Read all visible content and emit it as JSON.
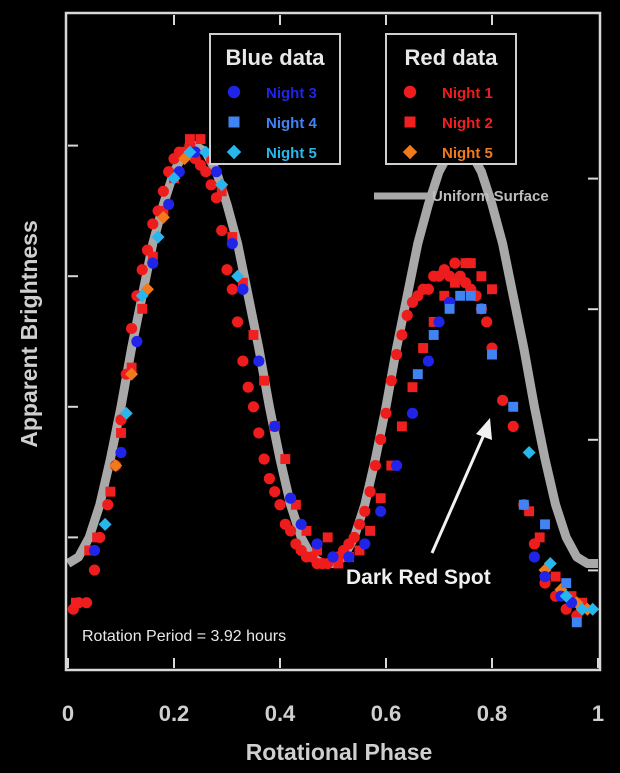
{
  "chart_data": {
    "type": "scatter",
    "title": "",
    "xlabel": "Rotational Phase",
    "ylabel": "Apparent Brightness",
    "xlim": [
      0,
      1
    ],
    "ylim": [
      0,
      1
    ],
    "x_ticks": [
      "0",
      "0.2",
      "0.4",
      "0.6",
      "0.8",
      "1"
    ],
    "grid": false,
    "annotations": {
      "rotation_period": "Rotation Period = 3.92 hours",
      "spot_label": "Dark Red Spot",
      "model_label": "Uniform Surface"
    },
    "legend_groups": [
      {
        "title": "Blue data",
        "placement": "top-left",
        "entries": [
          {
            "name": "Night 3",
            "marker": "circle",
            "color": "#1f24e8"
          },
          {
            "name": "Night 4",
            "marker": "square",
            "color": "#3f84f2"
          },
          {
            "name": "Night 5",
            "marker": "diamond",
            "color": "#27b6ee"
          }
        ]
      },
      {
        "title": "Red data",
        "placement": "top-center",
        "entries": [
          {
            "name": "Night 1",
            "marker": "circle",
            "color": "#ee1c1c"
          },
          {
            "name": "Night 2",
            "marker": "square",
            "color": "#f02020"
          },
          {
            "name": "Night 5",
            "marker": "diamond",
            "color": "#f07a1c"
          }
        ]
      }
    ],
    "model_curve": {
      "name": "Uniform Surface",
      "color": "#a8a8a8",
      "x": [
        0,
        0.02,
        0.04,
        0.06,
        0.08,
        0.1,
        0.12,
        0.14,
        0.16,
        0.18,
        0.2,
        0.22,
        0.24,
        0.26,
        0.28,
        0.3,
        0.32,
        0.34,
        0.36,
        0.38,
        0.4,
        0.42,
        0.44,
        0.46,
        0.48,
        0.5,
        0.52,
        0.54,
        0.56,
        0.58,
        0.6,
        0.62,
        0.64,
        0.66,
        0.68,
        0.7,
        0.72,
        0.74,
        0.76,
        0.78,
        0.8,
        0.82,
        0.84,
        0.86,
        0.88,
        0.9,
        0.92,
        0.94,
        0.96,
        0.98,
        1.0
      ],
      "y": [
        0.16,
        0.17,
        0.2,
        0.25,
        0.32,
        0.4,
        0.49,
        0.57,
        0.65,
        0.71,
        0.76,
        0.79,
        0.8,
        0.79,
        0.76,
        0.71,
        0.65,
        0.57,
        0.49,
        0.4,
        0.32,
        0.25,
        0.2,
        0.17,
        0.16,
        0.16,
        0.17,
        0.2,
        0.25,
        0.32,
        0.4,
        0.49,
        0.57,
        0.65,
        0.71,
        0.76,
        0.79,
        0.8,
        0.79,
        0.76,
        0.71,
        0.65,
        0.57,
        0.49,
        0.4,
        0.32,
        0.25,
        0.2,
        0.17,
        0.16,
        0.16
      ]
    },
    "series": [
      {
        "name": "Night 1",
        "marker": "circle",
        "color": "#ee1c1c",
        "x": [
          0.01,
          0.02,
          0.035,
          0.05,
          0.06,
          0.075,
          0.09,
          0.1,
          0.11,
          0.12,
          0.13,
          0.14,
          0.15,
          0.16,
          0.17,
          0.18,
          0.19,
          0.2,
          0.21,
          0.22,
          0.23,
          0.24,
          0.25,
          0.26,
          0.27,
          0.28,
          0.29,
          0.3,
          0.31,
          0.32,
          0.33,
          0.34,
          0.35,
          0.36,
          0.37,
          0.38,
          0.39,
          0.4,
          0.41,
          0.42,
          0.43,
          0.44,
          0.45,
          0.46,
          0.47,
          0.48,
          0.49,
          0.5,
          0.51,
          0.52,
          0.53,
          0.54,
          0.55,
          0.56,
          0.57,
          0.58,
          0.59,
          0.6,
          0.61,
          0.62,
          0.63,
          0.64,
          0.65,
          0.66,
          0.67,
          0.68,
          0.69,
          0.7,
          0.71,
          0.72,
          0.73,
          0.74,
          0.75,
          0.76,
          0.77,
          0.78,
          0.79,
          0.8,
          0.82,
          0.84,
          0.86,
          0.88,
          0.9,
          0.92,
          0.94,
          0.96
        ],
        "y": [
          0.09,
          0.1,
          0.1,
          0.15,
          0.2,
          0.25,
          0.31,
          0.38,
          0.45,
          0.52,
          0.57,
          0.61,
          0.64,
          0.68,
          0.7,
          0.73,
          0.76,
          0.78,
          0.79,
          0.79,
          0.8,
          0.78,
          0.77,
          0.76,
          0.74,
          0.72,
          0.67,
          0.61,
          0.58,
          0.53,
          0.47,
          0.43,
          0.4,
          0.36,
          0.32,
          0.29,
          0.27,
          0.25,
          0.22,
          0.21,
          0.19,
          0.18,
          0.17,
          0.17,
          0.16,
          0.16,
          0.16,
          0.17,
          0.17,
          0.18,
          0.19,
          0.2,
          0.22,
          0.24,
          0.27,
          0.31,
          0.35,
          0.39,
          0.44,
          0.48,
          0.51,
          0.54,
          0.56,
          0.57,
          0.58,
          0.58,
          0.6,
          0.6,
          0.61,
          0.6,
          0.62,
          0.6,
          0.59,
          0.58,
          0.57,
          0.55,
          0.53,
          0.49,
          0.41,
          0.37,
          0.25,
          0.19,
          0.13,
          0.11,
          0.09,
          0.08
        ]
      },
      {
        "name": "Night 2",
        "marker": "square",
        "color": "#f02020",
        "x": [
          0.015,
          0.04,
          0.055,
          0.08,
          0.1,
          0.12,
          0.14,
          0.16,
          0.18,
          0.2,
          0.215,
          0.23,
          0.25,
          0.27,
          0.29,
          0.31,
          0.33,
          0.35,
          0.37,
          0.39,
          0.41,
          0.43,
          0.45,
          0.47,
          0.49,
          0.51,
          0.53,
          0.55,
          0.57,
          0.59,
          0.61,
          0.63,
          0.65,
          0.67,
          0.69,
          0.71,
          0.73,
          0.75,
          0.76,
          0.78,
          0.8,
          0.87,
          0.89,
          0.92,
          0.95,
          0.97
        ],
        "y": [
          0.1,
          0.18,
          0.2,
          0.27,
          0.36,
          0.46,
          0.55,
          0.63,
          0.7,
          0.75,
          0.79,
          0.81,
          0.81,
          0.78,
          0.73,
          0.66,
          0.59,
          0.51,
          0.44,
          0.37,
          0.32,
          0.25,
          0.21,
          0.18,
          0.2,
          0.16,
          0.17,
          0.18,
          0.21,
          0.26,
          0.31,
          0.37,
          0.43,
          0.49,
          0.53,
          0.57,
          0.59,
          0.62,
          0.62,
          0.6,
          0.58,
          0.24,
          0.2,
          0.14,
          0.11,
          0.1
        ]
      },
      {
        "name": "Night 5 (red)",
        "marker": "diamond",
        "color": "#f07a1c",
        "x": [
          0.09,
          0.12,
          0.15,
          0.18,
          0.22,
          0.9,
          0.93,
          0.96,
          0.98
        ],
        "y": [
          0.31,
          0.45,
          0.58,
          0.69,
          0.78,
          0.15,
          0.12,
          0.1,
          0.09
        ]
      },
      {
        "name": "Night 3",
        "marker": "circle",
        "color": "#1f24e8",
        "x": [
          0.05,
          0.1,
          0.13,
          0.16,
          0.19,
          0.21,
          0.24,
          0.28,
          0.31,
          0.33,
          0.36,
          0.39,
          0.42,
          0.44,
          0.47,
          0.5,
          0.53,
          0.56,
          0.59,
          0.62,
          0.65,
          0.68,
          0.7,
          0.72,
          0.88,
          0.9,
          0.93,
          0.95
        ],
        "y": [
          0.18,
          0.33,
          0.5,
          0.62,
          0.71,
          0.76,
          0.79,
          0.76,
          0.65,
          0.58,
          0.47,
          0.37,
          0.26,
          0.22,
          0.19,
          0.17,
          0.17,
          0.19,
          0.24,
          0.31,
          0.39,
          0.47,
          0.53,
          0.56,
          0.17,
          0.14,
          0.11,
          0.1
        ]
      },
      {
        "name": "Night 4",
        "marker": "square",
        "color": "#3f84f2",
        "x": [
          0.66,
          0.69,
          0.72,
          0.74,
          0.76,
          0.78,
          0.8,
          0.84,
          0.86,
          0.9,
          0.94,
          0.96
        ],
        "y": [
          0.45,
          0.51,
          0.55,
          0.57,
          0.57,
          0.55,
          0.48,
          0.4,
          0.25,
          0.22,
          0.13,
          0.07
        ]
      },
      {
        "name": "Night 5",
        "marker": "diamond",
        "color": "#27b6ee",
        "x": [
          0.07,
          0.11,
          0.14,
          0.17,
          0.2,
          0.23,
          0.26,
          0.29,
          0.32,
          0.87,
          0.91,
          0.94,
          0.97,
          0.99
        ],
        "y": [
          0.22,
          0.39,
          0.57,
          0.66,
          0.75,
          0.79,
          0.79,
          0.74,
          0.6,
          0.33,
          0.16,
          0.11,
          0.09,
          0.09
        ]
      }
    ]
  }
}
